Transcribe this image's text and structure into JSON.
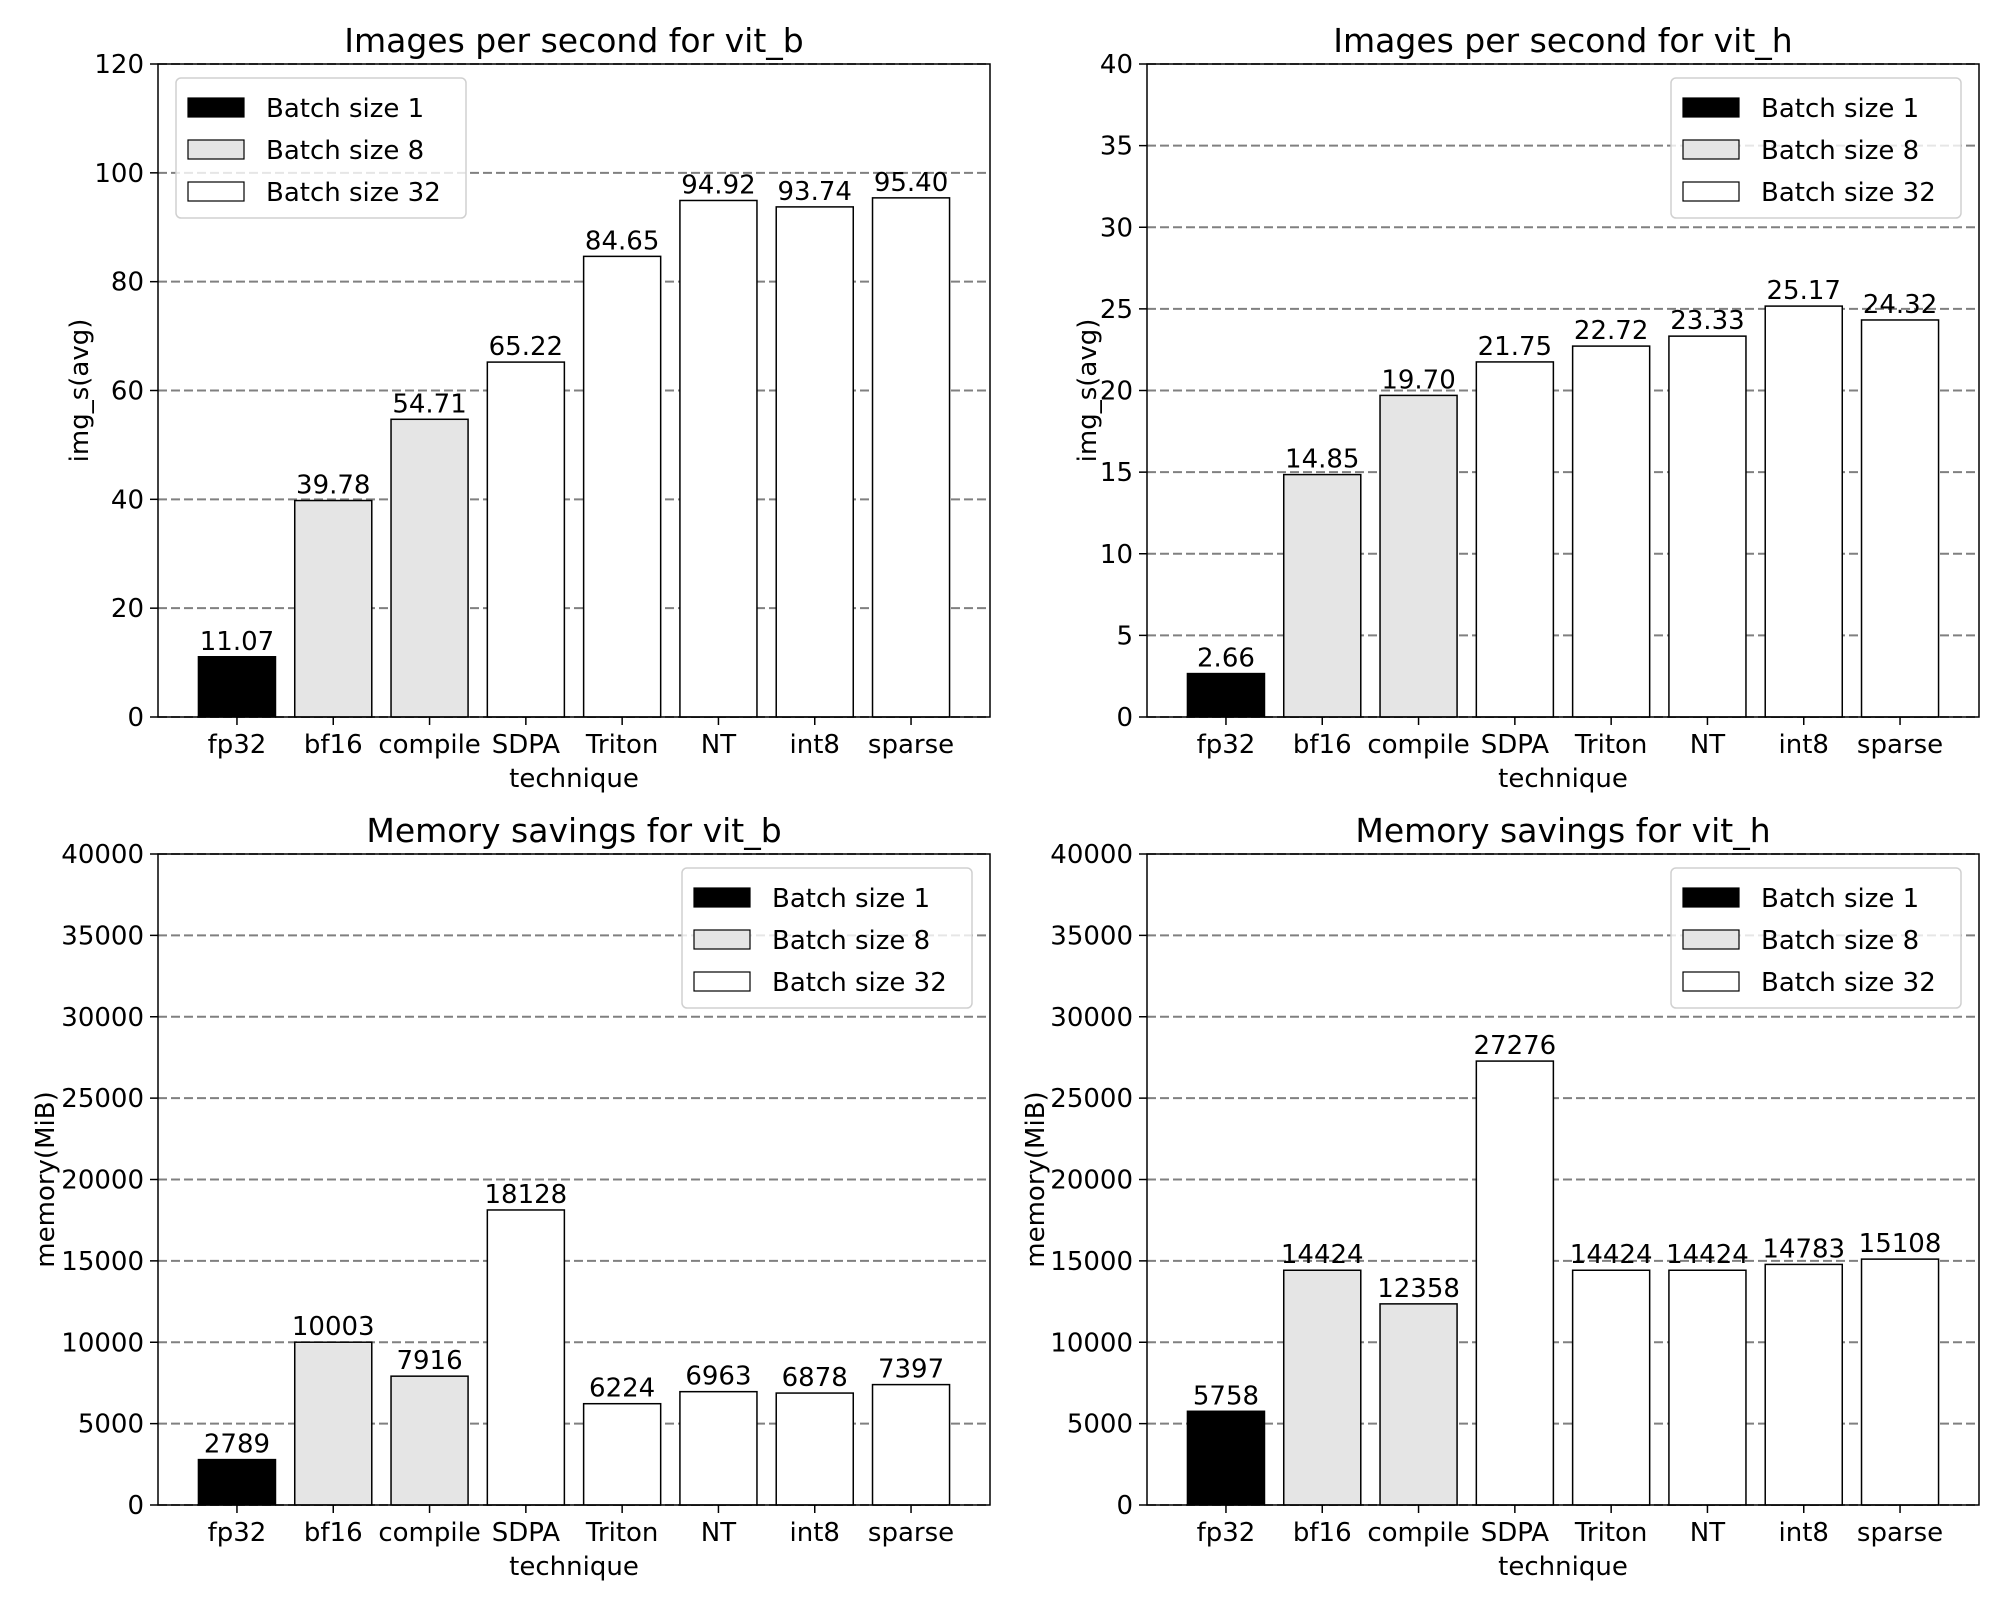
{
  "colors": {
    "Batch size 1": "#000000",
    "Batch size 8": "#e5e5e5",
    "Batch size 32": "#ffffff",
    "grid": "#808080"
  },
  "chart_data": [
    {
      "type": "bar",
      "title": "Images per second for vit_b",
      "xlabel": "technique",
      "ylabel": "img_s(avg)",
      "ylim": [
        0,
        120
      ],
      "yticks": [
        0,
        20,
        40,
        60,
        80,
        100,
        120
      ],
      "grid": "y dashed",
      "legend": "upper-left",
      "legend_entries": [
        "Batch size 1",
        "Batch size 8",
        "Batch size 32"
      ],
      "categories": [
        "fp32",
        "bf16",
        "compile",
        "SDPA",
        "Triton",
        "NT",
        "int8",
        "sparse"
      ],
      "values": [
        11.07,
        39.78,
        54.71,
        65.22,
        84.65,
        94.92,
        93.74,
        95.4
      ],
      "value_labels": [
        "11.07",
        "39.78",
        "54.71",
        "65.22",
        "84.65",
        "94.92",
        "93.74",
        "95.40"
      ],
      "series_of_bar": [
        "Batch size 1",
        "Batch size 8",
        "Batch size 8",
        "Batch size 32",
        "Batch size 32",
        "Batch size 32",
        "Batch size 32",
        "Batch size 32"
      ]
    },
    {
      "type": "bar",
      "title": "Images per second for vit_h",
      "xlabel": "technique",
      "ylabel": "img_s(avg)",
      "ylim": [
        0,
        40
      ],
      "yticks": [
        0,
        5,
        10,
        15,
        20,
        25,
        30,
        35,
        40
      ],
      "grid": "y dashed",
      "legend": "upper-right",
      "legend_entries": [
        "Batch size 1",
        "Batch size 8",
        "Batch size 32"
      ],
      "categories": [
        "fp32",
        "bf16",
        "compile",
        "SDPA",
        "Triton",
        "NT",
        "int8",
        "sparse"
      ],
      "values": [
        2.66,
        14.85,
        19.7,
        21.75,
        22.72,
        23.33,
        25.17,
        24.32
      ],
      "value_labels": [
        "2.66",
        "14.85",
        "19.70",
        "21.75",
        "22.72",
        "23.33",
        "25.17",
        "24.32"
      ],
      "series_of_bar": [
        "Batch size 1",
        "Batch size 8",
        "Batch size 8",
        "Batch size 32",
        "Batch size 32",
        "Batch size 32",
        "Batch size 32",
        "Batch size 32"
      ]
    },
    {
      "type": "bar",
      "title": "Memory savings for vit_b",
      "xlabel": "technique",
      "ylabel": "memory(MiB)",
      "ylim": [
        0,
        40000
      ],
      "yticks": [
        0,
        5000,
        10000,
        15000,
        20000,
        25000,
        30000,
        35000,
        40000
      ],
      "grid": "y dashed",
      "legend": "upper-right",
      "legend_entries": [
        "Batch size 1",
        "Batch size 8",
        "Batch size 32"
      ],
      "categories": [
        "fp32",
        "bf16",
        "compile",
        "SDPA",
        "Triton",
        "NT",
        "int8",
        "sparse"
      ],
      "values": [
        2789,
        10003,
        7916,
        18128,
        6224,
        6963,
        6878,
        7397
      ],
      "value_labels": [
        "2789",
        "10003",
        "7916",
        "18128",
        "6224",
        "6963",
        "6878",
        "7397"
      ],
      "series_of_bar": [
        "Batch size 1",
        "Batch size 8",
        "Batch size 8",
        "Batch size 32",
        "Batch size 32",
        "Batch size 32",
        "Batch size 32",
        "Batch size 32"
      ]
    },
    {
      "type": "bar",
      "title": "Memory savings for vit_h",
      "xlabel": "technique",
      "ylabel": "memory(MiB)",
      "ylim": [
        0,
        40000
      ],
      "yticks": [
        0,
        5000,
        10000,
        15000,
        20000,
        25000,
        30000,
        35000,
        40000
      ],
      "grid": "y dashed",
      "legend": "upper-right",
      "legend_entries": [
        "Batch size 1",
        "Batch size 8",
        "Batch size 32"
      ],
      "categories": [
        "fp32",
        "bf16",
        "compile",
        "SDPA",
        "Triton",
        "NT",
        "int8",
        "sparse"
      ],
      "values": [
        5758,
        14424,
        12358,
        27276,
        14424,
        14424,
        14783,
        15108
      ],
      "value_labels": [
        "5758",
        "14424",
        "12358",
        "27276",
        "14424",
        "14424",
        "14783",
        "15108"
      ],
      "series_of_bar": [
        "Batch size 1",
        "Batch size 8",
        "Batch size 8",
        "Batch size 32",
        "Batch size 32",
        "Batch size 32",
        "Batch size 32",
        "Batch size 32"
      ]
    }
  ]
}
